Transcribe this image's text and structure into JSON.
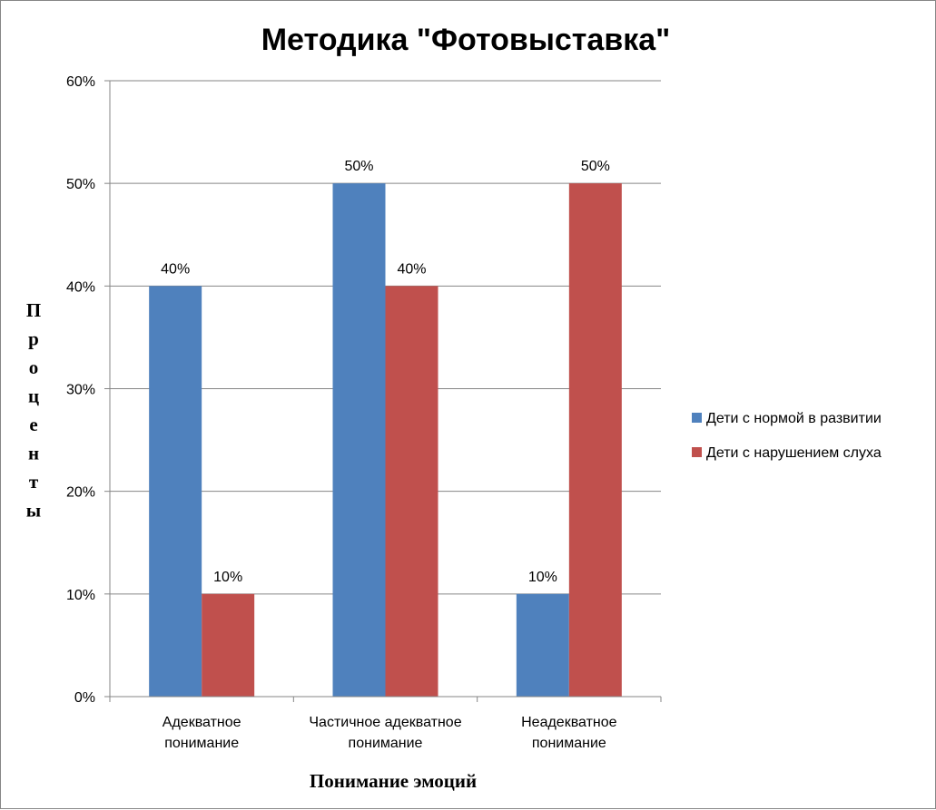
{
  "chart_data": {
    "type": "bar",
    "title": "Методика \"Фотовыставка\"",
    "xlabel": "Понимание эмоций",
    "ylabel": "Проценты",
    "ylim": [
      0,
      60
    ],
    "ytick_step": 10,
    "yticks": [
      "0%",
      "10%",
      "20%",
      "30%",
      "40%",
      "50%",
      "60%"
    ],
    "grid": true,
    "legend_position": "right",
    "categories": [
      [
        "Адекватное",
        "понимание"
      ],
      [
        "Частичное адекватное",
        "понимание"
      ],
      [
        "Неадекватное",
        "понимание"
      ]
    ],
    "series": [
      {
        "name": "Дети с нормой в развитии",
        "color": "#4f81bd",
        "values": [
          40,
          50,
          10
        ],
        "labels": [
          "40%",
          "50%",
          "10%"
        ]
      },
      {
        "name": "Дети с нарушением слуха",
        "color": "#c0504d",
        "values": [
          10,
          40,
          50
        ],
        "labels": [
          "10%",
          "40%",
          "50%"
        ]
      }
    ]
  }
}
